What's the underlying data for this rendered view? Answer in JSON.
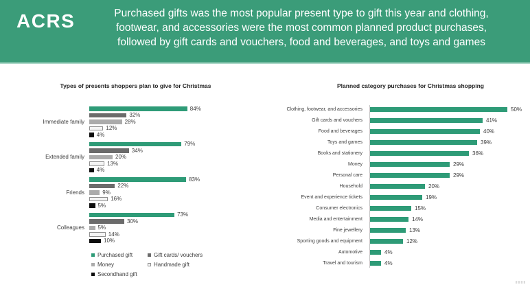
{
  "brand": {
    "logo": "ACRS"
  },
  "banner": {
    "bg_color": "#3b9c79",
    "text_color": "#ffffff",
    "lines": [
      "Purchased gifts was the most popular present type to gift this year and clothing,",
      "footwear, and accessories were the most common planned product purchases,",
      "followed by gift cards and vouchers, food and beverages, and toys and games"
    ],
    "text": "Purchased gifts was the most popular present type to gift this year and clothing, footwear, and accessories were the most common planned product purchases, followed by gift cards and vouchers, food and beverages, and toys and games"
  },
  "colors": {
    "accent_green": "#2e9b77",
    "dark_gray": "#6b6b6b",
    "mid_gray": "#ababab",
    "light_gray": "#f4f4f4",
    "black": "#0d0d0d"
  },
  "chart_data": [
    {
      "type": "bar",
      "orientation": "horizontal",
      "title": "Types of presents shoppers plan to give for Christmas",
      "categories": [
        "Immediate family",
        "Extended family",
        "Friends",
        "Colleagues"
      ],
      "series": [
        {
          "name": "Purchased gift",
          "color": "#2e9b77",
          "values": [
            84,
            79,
            83,
            73
          ]
        },
        {
          "name": "Gift cards/ vouchers",
          "color": "#6b6b6b",
          "values": [
            32,
            34,
            22,
            30
          ]
        },
        {
          "name": "Money",
          "color": "#ababab",
          "values": [
            28,
            20,
            9,
            5
          ]
        },
        {
          "name": "Handmade gift",
          "color": "#f4f4f4",
          "border_color": "#8f8f8f",
          "values": [
            12,
            13,
            16,
            14
          ]
        },
        {
          "name": "Secondhand gift",
          "color": "#0d0d0d",
          "values": [
            4,
            4,
            5,
            10
          ]
        }
      ],
      "value_suffix": "%",
      "xlim": [
        0,
        100
      ],
      "grid": false,
      "legend_position": "bottom",
      "legend_columns": 2
    },
    {
      "type": "bar",
      "orientation": "horizontal",
      "title": "Planned category purchases for Christmas shopping",
      "categories": [
        "Clothing, footwear, and accessories",
        "Gift cards and vouchers",
        "Food and beverages",
        "Toys and games",
        "Books and stationery",
        "Money",
        "Personal care",
        "Household",
        "Event and experience tickets",
        "Consumer electronics",
        "Media and entertainment",
        "Fine jewellery",
        "Sporting goods and equipment",
        "Automotive",
        "Travel and tourism"
      ],
      "values": [
        50,
        41,
        40,
        39,
        36,
        29,
        29,
        20,
        19,
        15,
        14,
        13,
        12,
        4,
        4
      ],
      "value_suffix": "%",
      "bar_color": "#2e9b77",
      "xlim": [
        0,
        55
      ],
      "grid": false,
      "legend_position": "none"
    }
  ]
}
